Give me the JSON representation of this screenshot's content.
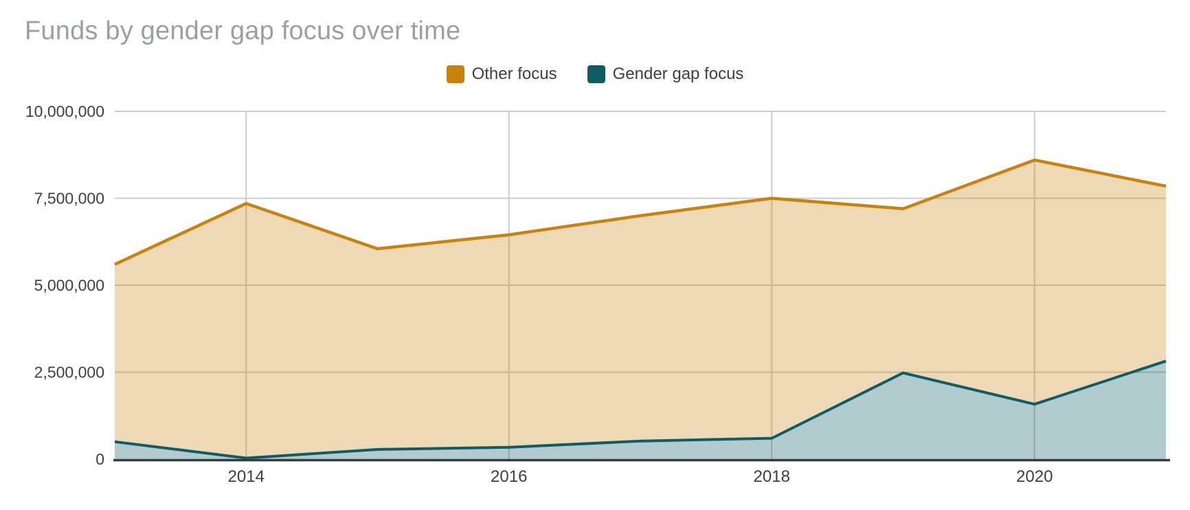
{
  "header": {
    "title": "Funds by gender gap focus over time",
    "title_color": "#9AA0A3"
  },
  "legend": {
    "position": "top-center",
    "text_color": "#3C4043",
    "items": [
      {
        "label": "Other focus",
        "color": "#C8820E"
      },
      {
        "label": "Gender gap focus",
        "color": "#0F5C66"
      }
    ]
  },
  "chart_data": {
    "type": "area",
    "title": "Funds by gender gap focus over time",
    "xlabel": "",
    "ylabel": "",
    "x": [
      2013,
      2014,
      2015,
      2016,
      2017,
      2018,
      2019,
      2020,
      2021
    ],
    "series": [
      {
        "name": "Other focus",
        "color": "#C8820E",
        "fill": "#F0DCB6",
        "values": [
          5600000,
          7350000,
          6050000,
          6450000,
          7000000,
          7500000,
          7200000,
          8600000,
          7850000
        ]
      },
      {
        "name": "Gender gap focus",
        "color": "#0F5C66",
        "fill": "#AFC9CE",
        "values": [
          500000,
          30000,
          280000,
          340000,
          520000,
          600000,
          2480000,
          1580000,
          2820000
        ]
      }
    ],
    "ylim": [
      0,
      10000000
    ],
    "y_ticks": [
      {
        "value": 0,
        "label": "0"
      },
      {
        "value": 2500000,
        "label": "2,500,000"
      },
      {
        "value": 5000000,
        "label": "5,000,000"
      },
      {
        "value": 7500000,
        "label": "7,500,000"
      },
      {
        "value": 10000000,
        "label": "10,000,000"
      }
    ],
    "x_ticks": [
      {
        "value": 2014,
        "label": "2014"
      },
      {
        "value": 2016,
        "label": "2016"
      },
      {
        "value": 2018,
        "label": "2018"
      },
      {
        "value": 2020,
        "label": "2020"
      }
    ],
    "grid": true,
    "legend_position": "top",
    "axis_text_color": "#3C4043",
    "grid_color": "#CCCCCC",
    "axis_line_color": "#333B3E"
  }
}
